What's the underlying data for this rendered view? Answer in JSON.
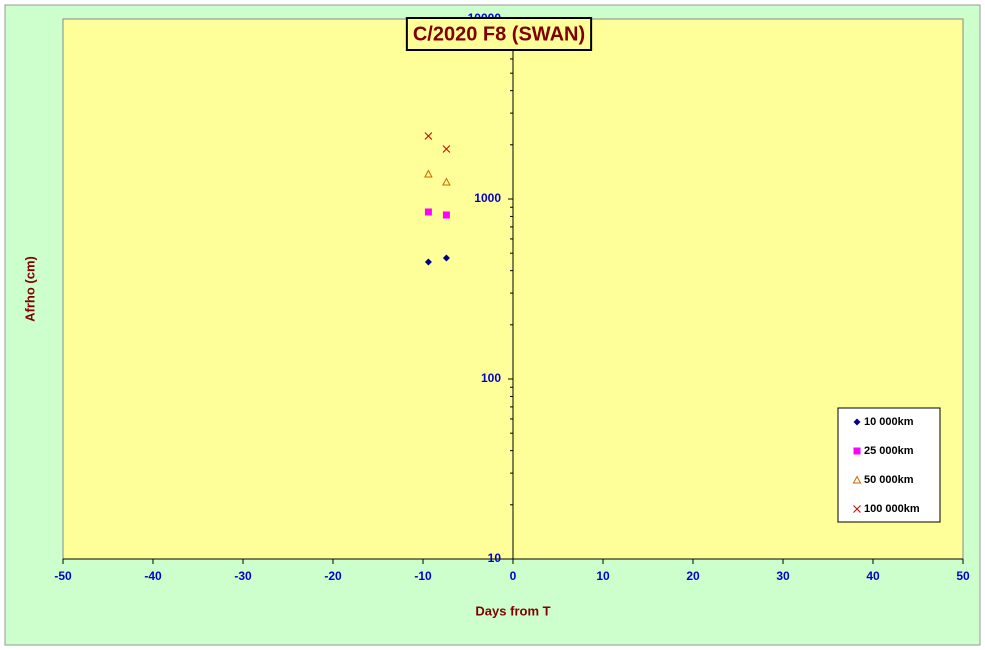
{
  "chart_data": {
    "type": "scatter",
    "title": "C/2020 F8 (SWAN)",
    "xlabel": "Days from T",
    "ylabel": "Afrho (cm)",
    "xlim": [
      -50,
      50
    ],
    "xticks": [
      -50,
      -40,
      -30,
      -20,
      -10,
      0,
      10,
      20,
      30,
      40,
      50
    ],
    "ylim": [
      10,
      10000
    ],
    "yticks": [
      10,
      100,
      1000,
      10000
    ],
    "ylog": true,
    "legend": "lower right",
    "series": [
      {
        "name": "10 000km",
        "color": "#000080",
        "marker": "diamond",
        "x": [
          -9.4,
          -7.4
        ],
        "values": [
          447,
          470
        ]
      },
      {
        "name": "25 000km",
        "color": "#ff00ff",
        "marker": "square",
        "x": [
          -9.4,
          -7.4
        ],
        "values": [
          847,
          815
        ]
      },
      {
        "name": "50 000km",
        "color": "#cc6600",
        "marker": "triangle",
        "x": [
          -9.4,
          -7.4
        ],
        "values": [
          1377,
          1243
        ]
      },
      {
        "name": "100 000km",
        "color": "#cc0000",
        "marker": "cross",
        "x": [
          -9.4,
          -7.4
        ],
        "values": [
          2239,
          1896
        ]
      }
    ]
  }
}
